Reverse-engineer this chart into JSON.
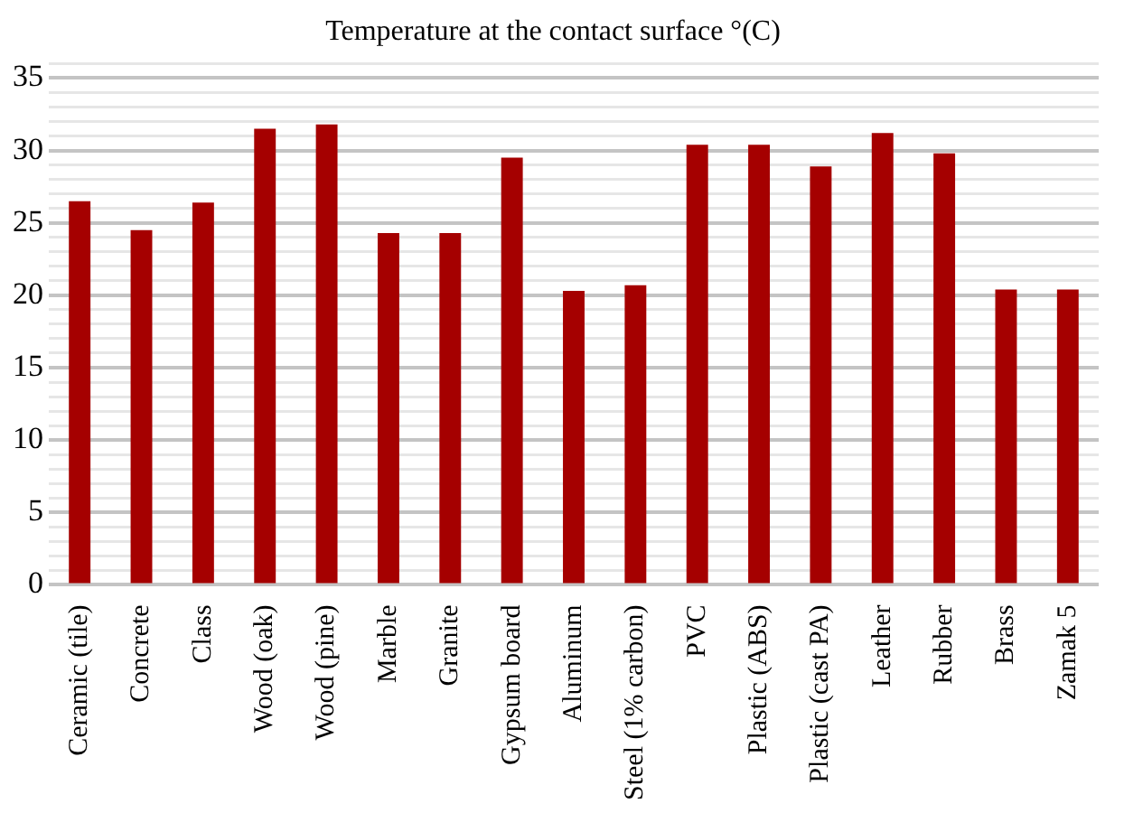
{
  "chart_data": {
    "type": "bar",
    "title": "Temperature at the contact surface °(C)",
    "categories": [
      "Ceramic (tile)",
      "Concrete",
      "Class",
      "Wood (oak)",
      "Wood (pine)",
      "Marble",
      "Granite",
      "Gypsum board",
      "Aluminum",
      "Steel (1% carbon)",
      "PVC",
      "Plastic (ABS)",
      "Plastic (cast PA)",
      "Leather",
      "Rubber",
      "Brass",
      "Zamak 5"
    ],
    "values": [
      26.5,
      24.5,
      26.4,
      31.5,
      31.8,
      24.3,
      24.3,
      29.5,
      20.3,
      20.7,
      30.4,
      30.4,
      28.9,
      31.2,
      29.8,
      20.4,
      20.4
    ],
    "color": "#a50000",
    "ylim": [
      0,
      36
    ],
    "yticks": [
      0,
      {
        "value": 1,
        "label": null
      },
      {
        "value": 2,
        "label": null
      },
      {
        "value": 3,
        "label": null
      },
      {
        "value": 4,
        "label": null
      },
      5,
      {
        "value": 6,
        "label": null
      },
      {
        "value": 7,
        "label": null
      },
      {
        "value": 8,
        "label": null
      },
      {
        "value": 9,
        "label": null
      },
      10,
      {
        "value": 11,
        "label": null
      },
      {
        "value": 12,
        "label": null
      },
      {
        "value": 13,
        "label": null
      },
      {
        "value": 14,
        "label": null
      },
      15,
      {
        "value": 16,
        "label": null
      },
      {
        "value": 17,
        "label": null
      },
      {
        "value": 18,
        "label": null
      },
      {
        "value": 19,
        "label": null
      },
      20,
      {
        "value": 21,
        "label": null
      },
      {
        "value": 22,
        "label": null
      },
      {
        "value": 23,
        "label": null
      },
      {
        "value": 24,
        "label": null
      },
      25,
      {
        "value": 26,
        "label": null
      },
      {
        "value": 27,
        "label": null
      },
      {
        "value": 28,
        "label": null
      },
      {
        "value": 29,
        "label": null
      },
      30,
      {
        "value": 31,
        "label": null
      },
      {
        "value": 32,
        "label": null
      },
      {
        "value": 33,
        "label": null
      },
      {
        "value": 34,
        "label": null
      },
      35,
      {
        "value": 36,
        "label": null
      }
    ],
    "grid": "y",
    "legend": false
  }
}
